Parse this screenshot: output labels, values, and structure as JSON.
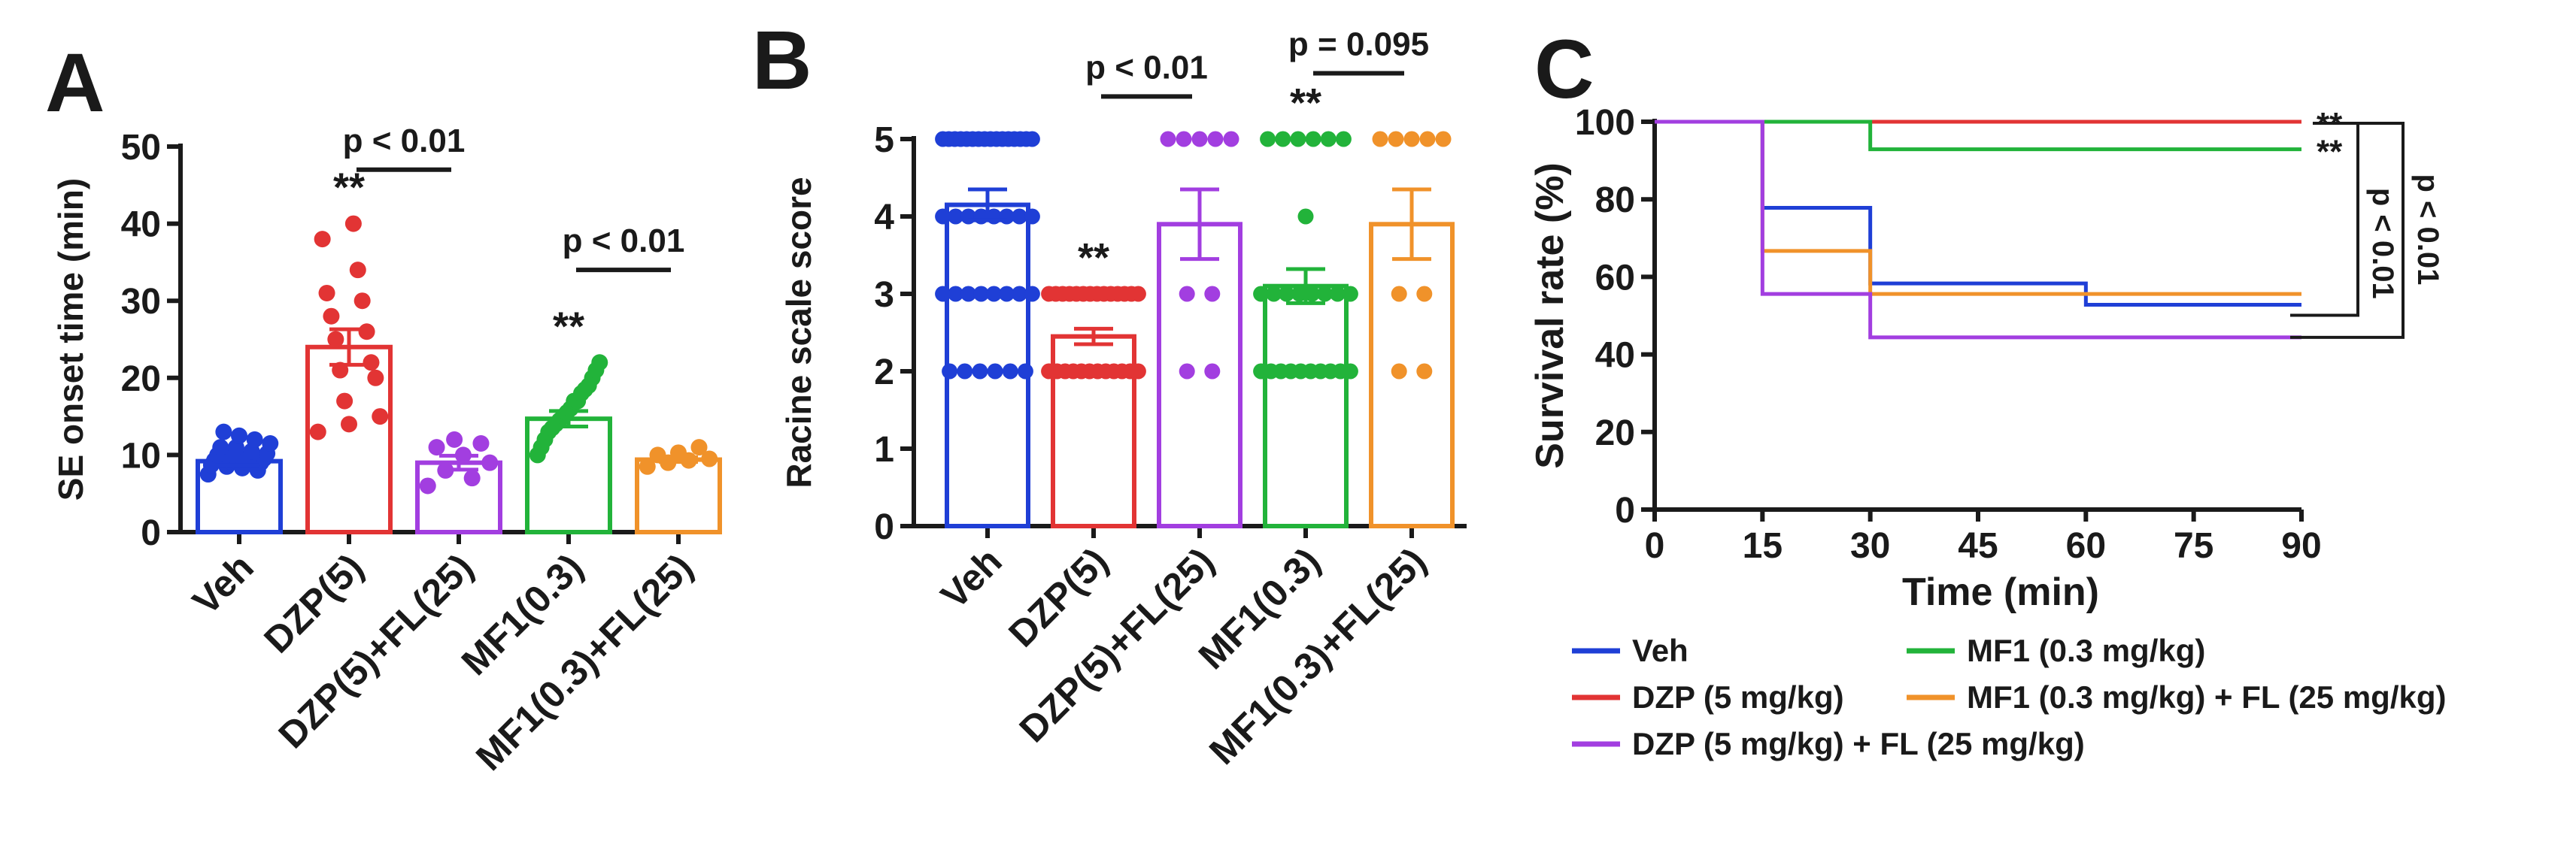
{
  "panels": {
    "a_letter": "A",
    "b_letter": "B",
    "c_letter": "C"
  },
  "colors": {
    "veh": "#1f3fd6",
    "dzp": "#e23434",
    "dzp_fl": "#a23ee0",
    "mf1": "#22b33a",
    "mf1_fl": "#f0922a",
    "axis": "#1a1a1a"
  },
  "chart_data": [
    {
      "id": "A",
      "type": "bar",
      "ylabel": "SE onset time (min)",
      "xlabel": "",
      "ylim": [
        0,
        50
      ],
      "yticks": [
        "0",
        "10",
        "20",
        "30",
        "40",
        "50"
      ],
      "categories": [
        "Veh",
        "DZP(5)",
        "DZP(5)+FL(25)",
        "MF1(0.3)",
        "MF1(0.3)+FL(25)"
      ],
      "values": [
        9.2,
        24.0,
        9.0,
        14.7,
        9.4
      ],
      "sem": [
        0.5,
        2.3,
        0.9,
        1.0,
        0.3
      ],
      "points": [
        [
          7.5,
          8,
          8.3,
          8.5,
          8.7,
          9,
          9,
          9.2,
          9.3,
          9.5,
          9.7,
          10,
          10,
          10.2,
          10.5,
          11,
          11,
          11.5,
          12,
          12.5,
          13
        ],
        [
          13,
          14,
          15,
          17,
          20,
          21,
          22,
          25,
          26,
          28,
          30,
          31,
          34,
          38,
          40
        ],
        [
          6,
          7,
          8,
          9,
          10,
          11,
          11.5,
          12
        ],
        [
          10,
          11,
          12,
          13,
          13.5,
          14,
          14.5,
          15,
          15.5,
          16,
          17,
          17,
          18,
          18.5,
          19,
          20,
          21,
          22
        ],
        [
          8.5,
          9,
          9.3,
          9.5,
          10,
          10.3,
          11
        ]
      ],
      "stars": [
        "",
        "**",
        "",
        "**",
        ""
      ],
      "comparisons": [
        {
          "from": 1,
          "to": 2,
          "label": "p < 0.01",
          "y": 47
        },
        {
          "from": 3,
          "to": 4,
          "label": "p < 0.01",
          "y": 34
        }
      ]
    },
    {
      "id": "B",
      "type": "bar",
      "ylabel": "Racine scale score",
      "xlabel": "",
      "ylim": [
        0,
        5
      ],
      "yticks": [
        "0",
        "1",
        "2",
        "3",
        "4",
        "5"
      ],
      "categories": [
        "Veh",
        "DZP(5)",
        "DZP(5)+FL(25)",
        "MF1(0.3)",
        "MF1(0.3)+FL(25)"
      ],
      "values": [
        4.15,
        2.45,
        3.9,
        3.1,
        3.9
      ],
      "sem": [
        0.2,
        0.1,
        0.45,
        0.22,
        0.45
      ],
      "points": [
        {
          "5": 16,
          "4": 8,
          "3": 8,
          "2": 6
        },
        {
          "3": 14,
          "2": 12
        },
        {
          "5": 5,
          "3": 2,
          "2": 2
        },
        {
          "5": 6,
          "4": 1,
          "3": 8,
          "2": 10
        },
        {
          "5": 5,
          "3": 2,
          "2": 2
        }
      ],
      "stars": [
        "",
        "**",
        "",
        "**",
        ""
      ],
      "comparisons": [
        {
          "from": 1,
          "to": 2,
          "label": "p < 0.01",
          "y": 5.55
        },
        {
          "from": 3,
          "to": 4,
          "label": "p = 0.095",
          "y": 5.85
        }
      ]
    },
    {
      "id": "C",
      "type": "line",
      "ylabel": "Survival rate (%)",
      "xlabel": "Time (min)",
      "xlim": [
        0,
        90
      ],
      "ylim": [
        0,
        100
      ],
      "xticks": [
        "0",
        "15",
        "30",
        "45",
        "60",
        "75",
        "90"
      ],
      "yticks": [
        "0",
        "20",
        "40",
        "60",
        "80",
        "100"
      ],
      "series": [
        {
          "key": "dzp",
          "name": "DZP (5 mg/kg)",
          "steps": [
            [
              0,
              100
            ],
            [
              90,
              100
            ]
          ]
        },
        {
          "key": "mf1",
          "name": "MF1 (0.3 mg/kg)",
          "steps": [
            [
              0,
              100
            ],
            [
              30,
              92.9
            ],
            [
              90,
              92.9
            ]
          ]
        },
        {
          "key": "veh",
          "name": "Veh",
          "steps": [
            [
              0,
              100
            ],
            [
              15,
              77.8
            ],
            [
              30,
              58.3
            ],
            [
              60,
              52.8
            ],
            [
              90,
              52.8
            ]
          ]
        },
        {
          "key": "mf1_fl",
          "name": "MF1 (0.3 mg/kg) + FL (25 mg/kg)",
          "steps": [
            [
              0,
              100
            ],
            [
              15,
              66.7
            ],
            [
              30,
              55.6
            ],
            [
              90,
              55.6
            ]
          ]
        },
        {
          "key": "dzp_fl",
          "name": "DZP (5 mg/kg) + FL (25 mg/kg)",
          "steps": [
            [
              0,
              100
            ],
            [
              15,
              55.6
            ],
            [
              30,
              44.4
            ],
            [
              90,
              44.4
            ]
          ]
        }
      ],
      "stars": [
        "**",
        "**"
      ],
      "comparisons": [
        {
          "label": "p < 0.01"
        },
        {
          "label": "p < 0.01"
        }
      ]
    }
  ],
  "legend": [
    {
      "key": "veh",
      "label": "Veh"
    },
    {
      "key": "mf1",
      "label": "MF1 (0.3 mg/kg)"
    },
    {
      "key": "dzp",
      "label": "DZP (5 mg/kg)"
    },
    {
      "key": "mf1_fl",
      "label": "MF1 (0.3 mg/kg) + FL (25 mg/kg)"
    },
    {
      "key": "dzp_fl",
      "label": "DZP (5 mg/kg) + FL (25 mg/kg)"
    }
  ]
}
